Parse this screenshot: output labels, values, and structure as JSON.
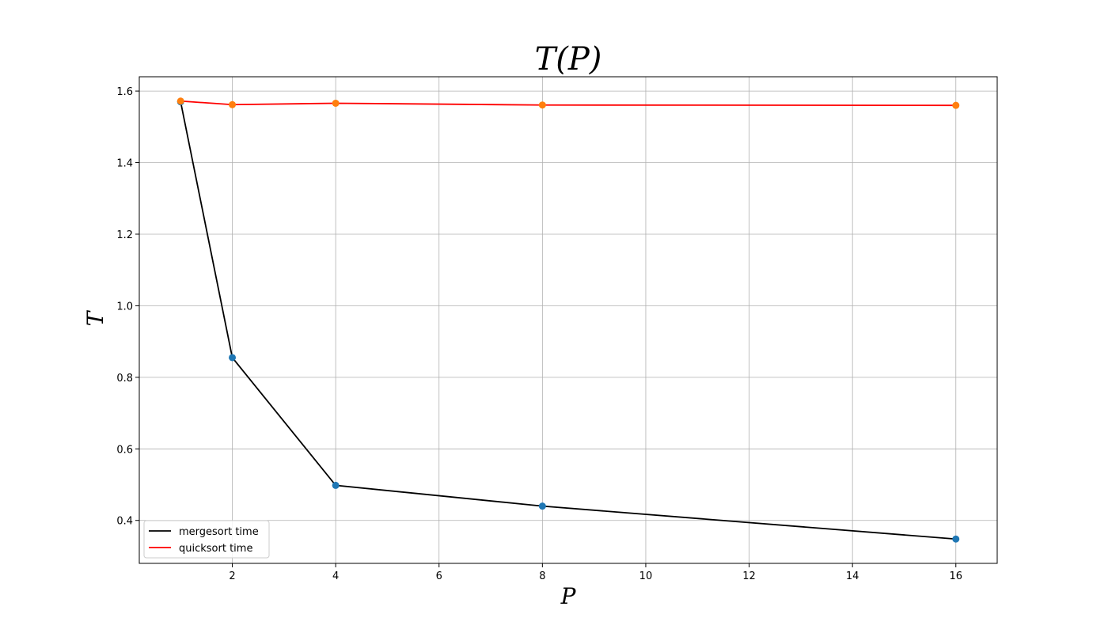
{
  "chart_data": {
    "type": "line",
    "title": "T(P)",
    "xlabel": "P",
    "ylabel": "T",
    "x": [
      1,
      2,
      4,
      8,
      16
    ],
    "xlim": [
      0.2,
      16.8
    ],
    "ylim": [
      0.28,
      1.64
    ],
    "xticks": [
      2,
      4,
      6,
      8,
      10,
      12,
      14,
      16
    ],
    "yticks": [
      0.4,
      0.6,
      0.8,
      1.0,
      1.2,
      1.4,
      1.6
    ],
    "ytick_labels": [
      "0.4",
      "0.6",
      "0.8",
      "1.0",
      "1.2",
      "1.4",
      "1.6"
    ],
    "grid": true,
    "legend_position": "lower-left",
    "series": [
      {
        "name": "mergesort time",
        "values": [
          1.57,
          0.855,
          0.498,
          0.44,
          0.348
        ],
        "line_color": "#000000",
        "marker_color": "#1f77b4"
      },
      {
        "name": "quicksort time",
        "values": [
          1.572,
          1.562,
          1.566,
          1.561,
          1.56
        ],
        "line_color": "#ff0000",
        "marker_color": "#ff7f0e"
      }
    ]
  }
}
